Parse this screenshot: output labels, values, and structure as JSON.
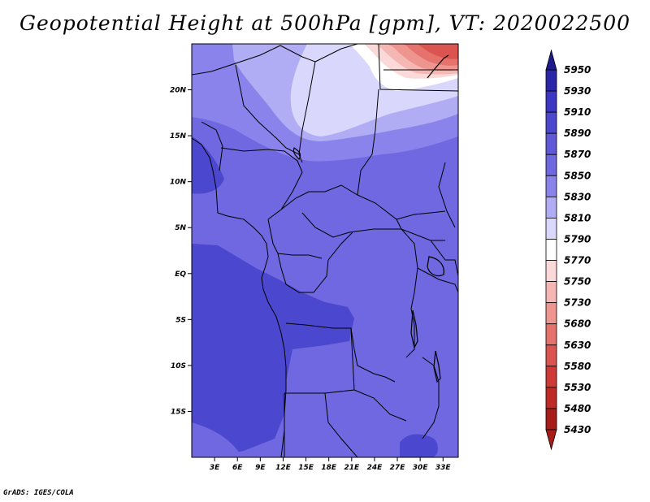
{
  "title": "Geopotential Height at 500hPa [gpm], VT: 2020022500",
  "credit": "GrADS: IGES/COLA",
  "map": {
    "variable": "Geopotential Height at 500hPa",
    "units": "gpm",
    "valid_time": "2020022500",
    "lat_ticks": [
      "20N",
      "15N",
      "10N",
      "5N",
      "EQ",
      "5S",
      "10S",
      "15S"
    ],
    "lat_values": [
      20,
      15,
      10,
      5,
      0,
      -5,
      -10,
      -15
    ],
    "lon_ticks": [
      "3E",
      "6E",
      "9E",
      "12E",
      "15E",
      "18E",
      "21E",
      "24E",
      "27E",
      "30E",
      "33E"
    ],
    "lon_values": [
      3,
      6,
      9,
      12,
      15,
      18,
      21,
      24,
      27,
      30,
      33
    ],
    "lat_range": [
      -20,
      25
    ],
    "lon_range": [
      0,
      35
    ]
  },
  "colorbar": {
    "levels": [
      "5950",
      "5930",
      "5910",
      "5890",
      "5870",
      "5850",
      "5830",
      "5810",
      "5790",
      "5770",
      "5750",
      "5730",
      "5680",
      "5630",
      "5580",
      "5530",
      "5480",
      "5430"
    ],
    "colors": [
      "#1e1a8c",
      "#2a26a8",
      "#3b36c4",
      "#4c47cf",
      "#5f59d8",
      "#6f68e0",
      "#8a83ec",
      "#b1adf4",
      "#d9d7fb",
      "#ffffff",
      "#fbd9d9",
      "#f5b7b4",
      "#ee9590",
      "#e5726c",
      "#dc5450",
      "#cf3a36",
      "#bf2a26",
      "#a81c1a"
    ]
  },
  "icons": {
    "top_arrow": "triangle-up-icon",
    "bottom_arrow": "triangle-down-icon"
  }
}
